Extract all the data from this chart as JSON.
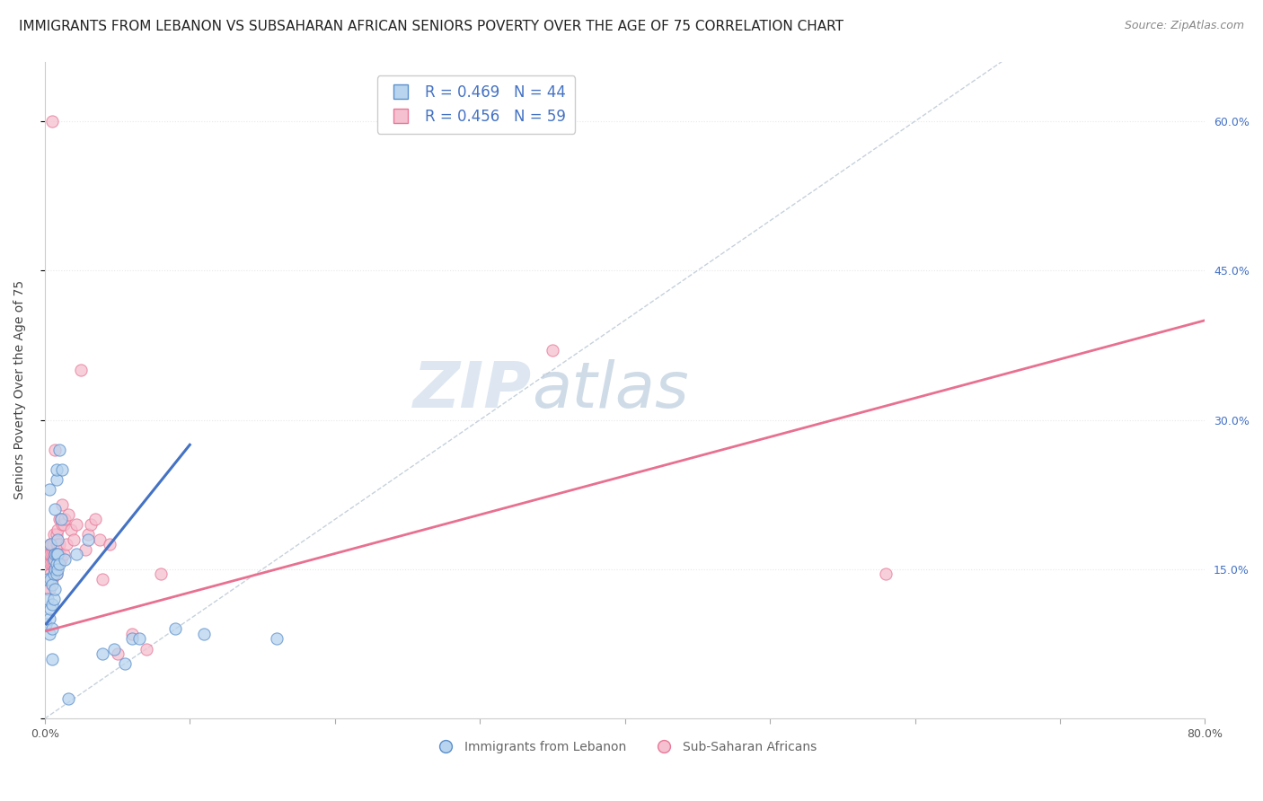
{
  "title": "IMMIGRANTS FROM LEBANON VS SUBSAHARAN AFRICAN SENIORS POVERTY OVER THE AGE OF 75 CORRELATION CHART",
  "source": "Source: ZipAtlas.com",
  "ylabel": "Seniors Poverty Over the Age of 75",
  "watermark_zip": "ZIP",
  "watermark_atlas": "atlas",
  "xlim": [
    0.0,
    0.8
  ],
  "ylim": [
    0.0,
    0.66
  ],
  "legend_blue_r": "R = 0.469",
  "legend_blue_n": "N = 44",
  "legend_pink_r": "R = 0.456",
  "legend_pink_n": "N = 59",
  "blue_fill": "#b8d4ee",
  "blue_edge": "#5b8fcc",
  "pink_fill": "#f5c0d0",
  "pink_edge": "#e87898",
  "blue_line_color": "#4472c4",
  "pink_line_color": "#e87090",
  "blue_scatter_x": [
    0.001,
    0.002,
    0.002,
    0.003,
    0.003,
    0.003,
    0.004,
    0.004,
    0.004,
    0.005,
    0.005,
    0.005,
    0.005,
    0.006,
    0.006,
    0.006,
    0.007,
    0.007,
    0.007,
    0.007,
    0.008,
    0.008,
    0.008,
    0.008,
    0.008,
    0.009,
    0.009,
    0.009,
    0.01,
    0.01,
    0.011,
    0.012,
    0.014,
    0.016,
    0.022,
    0.03,
    0.04,
    0.048,
    0.055,
    0.06,
    0.065,
    0.09,
    0.11,
    0.16
  ],
  "blue_scatter_y": [
    0.095,
    0.12,
    0.14,
    0.085,
    0.1,
    0.23,
    0.11,
    0.14,
    0.175,
    0.06,
    0.09,
    0.115,
    0.135,
    0.12,
    0.145,
    0.16,
    0.13,
    0.15,
    0.165,
    0.21,
    0.145,
    0.155,
    0.165,
    0.24,
    0.25,
    0.15,
    0.165,
    0.18,
    0.155,
    0.27,
    0.2,
    0.25,
    0.16,
    0.02,
    0.165,
    0.18,
    0.065,
    0.07,
    0.055,
    0.08,
    0.08,
    0.09,
    0.085,
    0.08
  ],
  "pink_scatter_x": [
    0.001,
    0.001,
    0.002,
    0.002,
    0.003,
    0.003,
    0.003,
    0.004,
    0.004,
    0.004,
    0.004,
    0.005,
    0.005,
    0.005,
    0.005,
    0.005,
    0.006,
    0.006,
    0.006,
    0.006,
    0.007,
    0.007,
    0.007,
    0.008,
    0.008,
    0.008,
    0.008,
    0.009,
    0.009,
    0.009,
    0.01,
    0.01,
    0.01,
    0.011,
    0.011,
    0.012,
    0.012,
    0.013,
    0.013,
    0.014,
    0.015,
    0.016,
    0.018,
    0.02,
    0.022,
    0.025,
    0.028,
    0.03,
    0.032,
    0.035,
    0.038,
    0.04,
    0.045,
    0.05,
    0.06,
    0.07,
    0.08,
    0.35,
    0.58
  ],
  "pink_scatter_y": [
    0.13,
    0.155,
    0.14,
    0.165,
    0.13,
    0.15,
    0.165,
    0.145,
    0.155,
    0.165,
    0.175,
    0.14,
    0.155,
    0.165,
    0.175,
    0.6,
    0.155,
    0.165,
    0.175,
    0.185,
    0.155,
    0.165,
    0.27,
    0.145,
    0.165,
    0.175,
    0.185,
    0.155,
    0.175,
    0.19,
    0.165,
    0.175,
    0.2,
    0.16,
    0.2,
    0.195,
    0.215,
    0.165,
    0.195,
    0.2,
    0.175,
    0.205,
    0.19,
    0.18,
    0.195,
    0.35,
    0.17,
    0.185,
    0.195,
    0.2,
    0.18,
    0.14,
    0.175,
    0.065,
    0.085,
    0.07,
    0.145,
    0.37,
    0.145
  ],
  "blue_line_x": [
    0.001,
    0.1
  ],
  "blue_line_y": [
    0.095,
    0.275
  ],
  "pink_line_x": [
    0.001,
    0.8
  ],
  "pink_line_y": [
    0.088,
    0.4
  ],
  "ref_line_x": [
    0.0,
    0.66
  ],
  "ref_line_y": [
    0.0,
    0.66
  ],
  "grid_color": "#e8e8e8",
  "grid_style": "dotted",
  "title_fontsize": 11,
  "source_fontsize": 9,
  "label_fontsize": 10,
  "tick_fontsize": 9,
  "background_color": "#ffffff"
}
